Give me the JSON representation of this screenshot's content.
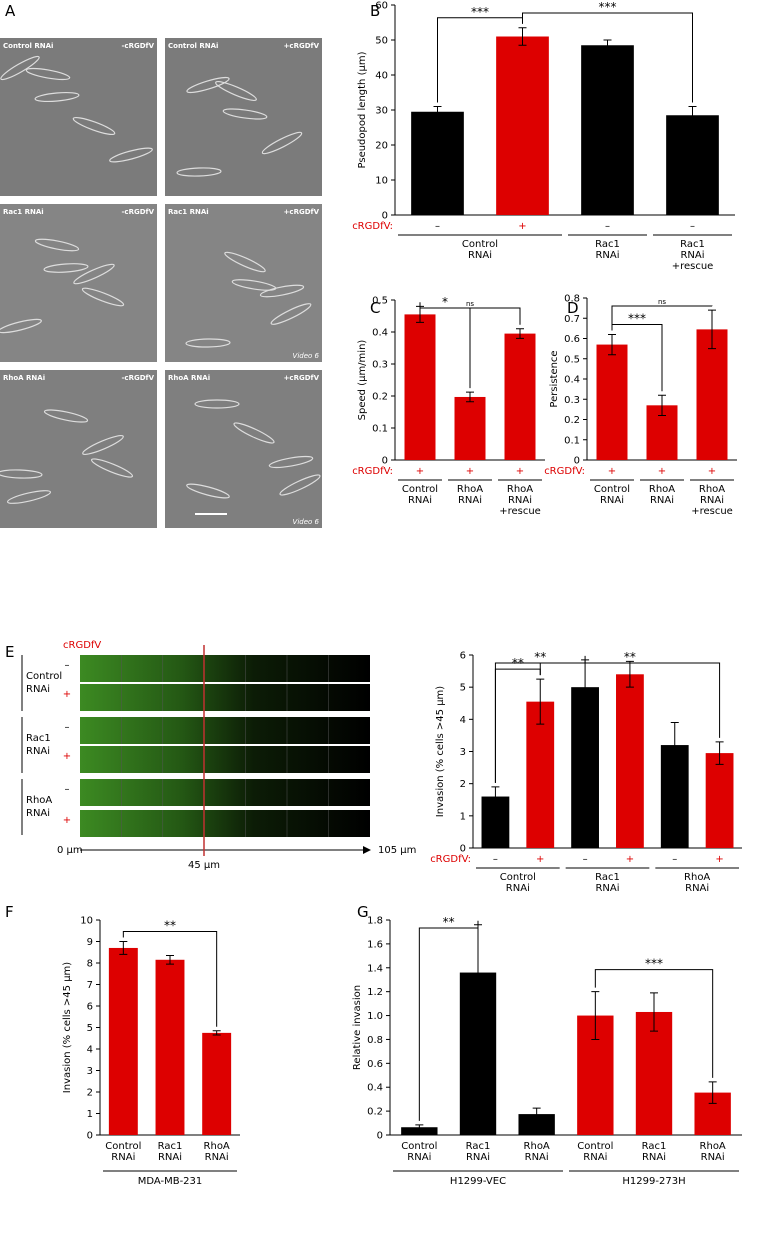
{
  "panel_labels": [
    "A",
    "B",
    "C",
    "D",
    "E",
    "F",
    "G"
  ],
  "micrographs": [
    {
      "condition": "Control RNAi",
      "treatment": "-cRGDfV"
    },
    {
      "condition": "Control RNAi",
      "treatment": "+cRGDfV"
    },
    {
      "condition": "Rac1 RNAi",
      "treatment": "-cRGDfV"
    },
    {
      "condition": "Rac1 RNAi",
      "treatment": "+cRGDfV",
      "note": "Video 6"
    },
    {
      "condition": "RhoA RNAi",
      "treatment": "-cRGDfV"
    },
    {
      "condition": "RhoA RNAi",
      "treatment": "+cRGDfV",
      "note": "Video 6"
    }
  ],
  "invasion_image": {
    "treatment_header": "cRGDfV",
    "rows": [
      {
        "group": "Control RNAi",
        "signs": [
          "–",
          "+"
        ]
      },
      {
        "group": "Rac1 RNAi",
        "signs": [
          "–",
          "+"
        ]
      },
      {
        "group": "RhoA RNAi",
        "signs": [
          "–",
          "+"
        ]
      }
    ],
    "axis_labels": [
      "0 μm",
      "45 μm",
      "105 μm"
    ]
  },
  "chart_data": [
    {
      "type": "bar",
      "ylabel": "Pseudopod length (μm)",
      "ylim": [
        0,
        60
      ],
      "yticks": [
        0,
        10,
        20,
        30,
        40,
        50,
        60
      ],
      "values": [
        29.5,
        51,
        48.5,
        28.5
      ],
      "errors": [
        1.5,
        2.5,
        1.5,
        2.5
      ],
      "colors": [
        "#000000",
        "#dd0000",
        "#000000",
        "#000000"
      ],
      "treatment_label": "cRGDfV:",
      "treatment": [
        "–",
        "+",
        "–",
        "–"
      ],
      "groups": [
        {
          "label": "Control RNAi",
          "size": 2
        },
        {
          "label": "Rac1 RNAi",
          "size": 1
        },
        {
          "label": "Rac1 RNAi +rescue",
          "size": 1
        }
      ],
      "significance": [
        {
          "label": "***",
          "from": 0,
          "to": 1
        },
        {
          "label": "***",
          "from": 1,
          "to": 3
        }
      ]
    },
    {
      "type": "bar",
      "ylabel": "Speed (μm/min)",
      "ylim": [
        0,
        0.5
      ],
      "yticks": [
        0,
        0.1,
        0.2,
        0.3,
        0.4,
        0.5
      ],
      "values": [
        0.455,
        0.197,
        0.395
      ],
      "errors": [
        0.025,
        0.015,
        0.015
      ],
      "colors": [
        "#dd0000",
        "#dd0000",
        "#dd0000"
      ],
      "treatment_label": "cRGDfV:",
      "treatment": [
        "+",
        "+",
        "+"
      ],
      "groups": [
        {
          "label": "Control RNAi",
          "size": 1
        },
        {
          "label": "RhoA RNAi",
          "size": 1
        },
        {
          "label": "RhoA RNAi +rescue",
          "size": 1
        }
      ],
      "significance": [
        {
          "label": "*",
          "from": 0,
          "to": 1
        },
        {
          "label": "ns",
          "from": 0,
          "to": 2
        }
      ]
    },
    {
      "type": "bar",
      "ylabel": "Persistence",
      "ylim": [
        0,
        0.8
      ],
      "yticks": [
        0,
        0.1,
        0.2,
        0.3,
        0.4,
        0.5,
        0.6,
        0.7,
        0.8
      ],
      "values": [
        0.57,
        0.27,
        0.645
      ],
      "errors": [
        0.05,
        0.05,
        0.095
      ],
      "colors": [
        "#dd0000",
        "#dd0000",
        "#dd0000"
      ],
      "treatment_label": "cRGDfV:",
      "treatment": [
        "+",
        "+",
        "+"
      ],
      "groups": [
        {
          "label": "Control RNAi",
          "size": 1
        },
        {
          "label": "RhoA RNAi",
          "size": 1
        },
        {
          "label": "RhoA RNAi +rescue",
          "size": 1
        }
      ],
      "significance": [
        {
          "label": "***",
          "from": 0,
          "to": 1
        },
        {
          "label": "ns",
          "from": 0,
          "to": 2
        }
      ]
    },
    {
      "type": "bar",
      "ylabel": "Invasion (% cells >45 μm)",
      "ylim": [
        0,
        6
      ],
      "yticks": [
        0,
        1,
        2,
        3,
        4,
        5,
        6
      ],
      "values": [
        1.6,
        4.55,
        5,
        5.4,
        3.2,
        2.95
      ],
      "errors": [
        0.3,
        0.7,
        0.85,
        0.4,
        0.7,
        0.35
      ],
      "colors": [
        "#000000",
        "#dd0000",
        "#000000",
        "#dd0000",
        "#000000",
        "#dd0000"
      ],
      "treatment_label": "cRGDfV:",
      "treatment": [
        "–",
        "+",
        "–",
        "+",
        "–",
        "+"
      ],
      "groups": [
        {
          "label": "Control RNAi",
          "size": 2
        },
        {
          "label": "Rac1 RNAi",
          "size": 2
        },
        {
          "label": "RhoA RNAi",
          "size": 2
        }
      ],
      "significance": [
        {
          "label": "**",
          "from": 0,
          "to": 1
        },
        {
          "label": "**",
          "from": 0,
          "to": 2
        },
        {
          "label": "**",
          "from": 1,
          "to": 5
        }
      ]
    },
    {
      "type": "bar",
      "ylabel": "Invasion (% cells >45 μm)",
      "ylim": [
        0,
        10
      ],
      "yticks": [
        0,
        1,
        2,
        3,
        4,
        5,
        6,
        7,
        8,
        9,
        10
      ],
      "values": [
        8.7,
        8.15,
        4.75
      ],
      "errors": [
        0.3,
        0.2,
        0.1
      ],
      "colors": [
        "#dd0000",
        "#dd0000",
        "#dd0000"
      ],
      "categories": [
        "Control RNAi",
        "Rac1 RNAi",
        "RhoA RNAi"
      ],
      "supergroups": [
        {
          "label": "MDA-MB-231",
          "size": 3
        }
      ],
      "significance": [
        {
          "label": "**",
          "from": 0,
          "to": 2
        }
      ]
    },
    {
      "type": "bar",
      "ylabel": "Relative invasion",
      "ylim": [
        0,
        1.8
      ],
      "yticks": [
        0,
        0.2,
        0.4,
        0.6,
        0.8,
        {
          "value": 1,
          "label": "1.0"
        },
        1.2,
        1.4,
        1.6,
        1.8
      ],
      "values": [
        0.065,
        1.36,
        0.175,
        1.0,
        1.03,
        0.355
      ],
      "errors": [
        0.02,
        0.4,
        0.05,
        0.2,
        0.16,
        0.09
      ],
      "colors": [
        "#000000",
        "#000000",
        "#000000",
        "#dd0000",
        "#dd0000",
        "#dd0000"
      ],
      "categories": [
        "Control RNAi",
        "Rac1 RNAi",
        "RhoA RNAi",
        "Control RNAi",
        "Rac1 RNAi",
        "RhoA RNAi"
      ],
      "supergroups": [
        {
          "label": "H1299-VEC",
          "size": 3
        },
        {
          "label": "H1299-273H",
          "size": 3
        }
      ],
      "significance": [
        {
          "label": "**",
          "from": 0,
          "to": 1
        },
        {
          "label": "***",
          "from": 3,
          "to": 5
        }
      ]
    }
  ]
}
